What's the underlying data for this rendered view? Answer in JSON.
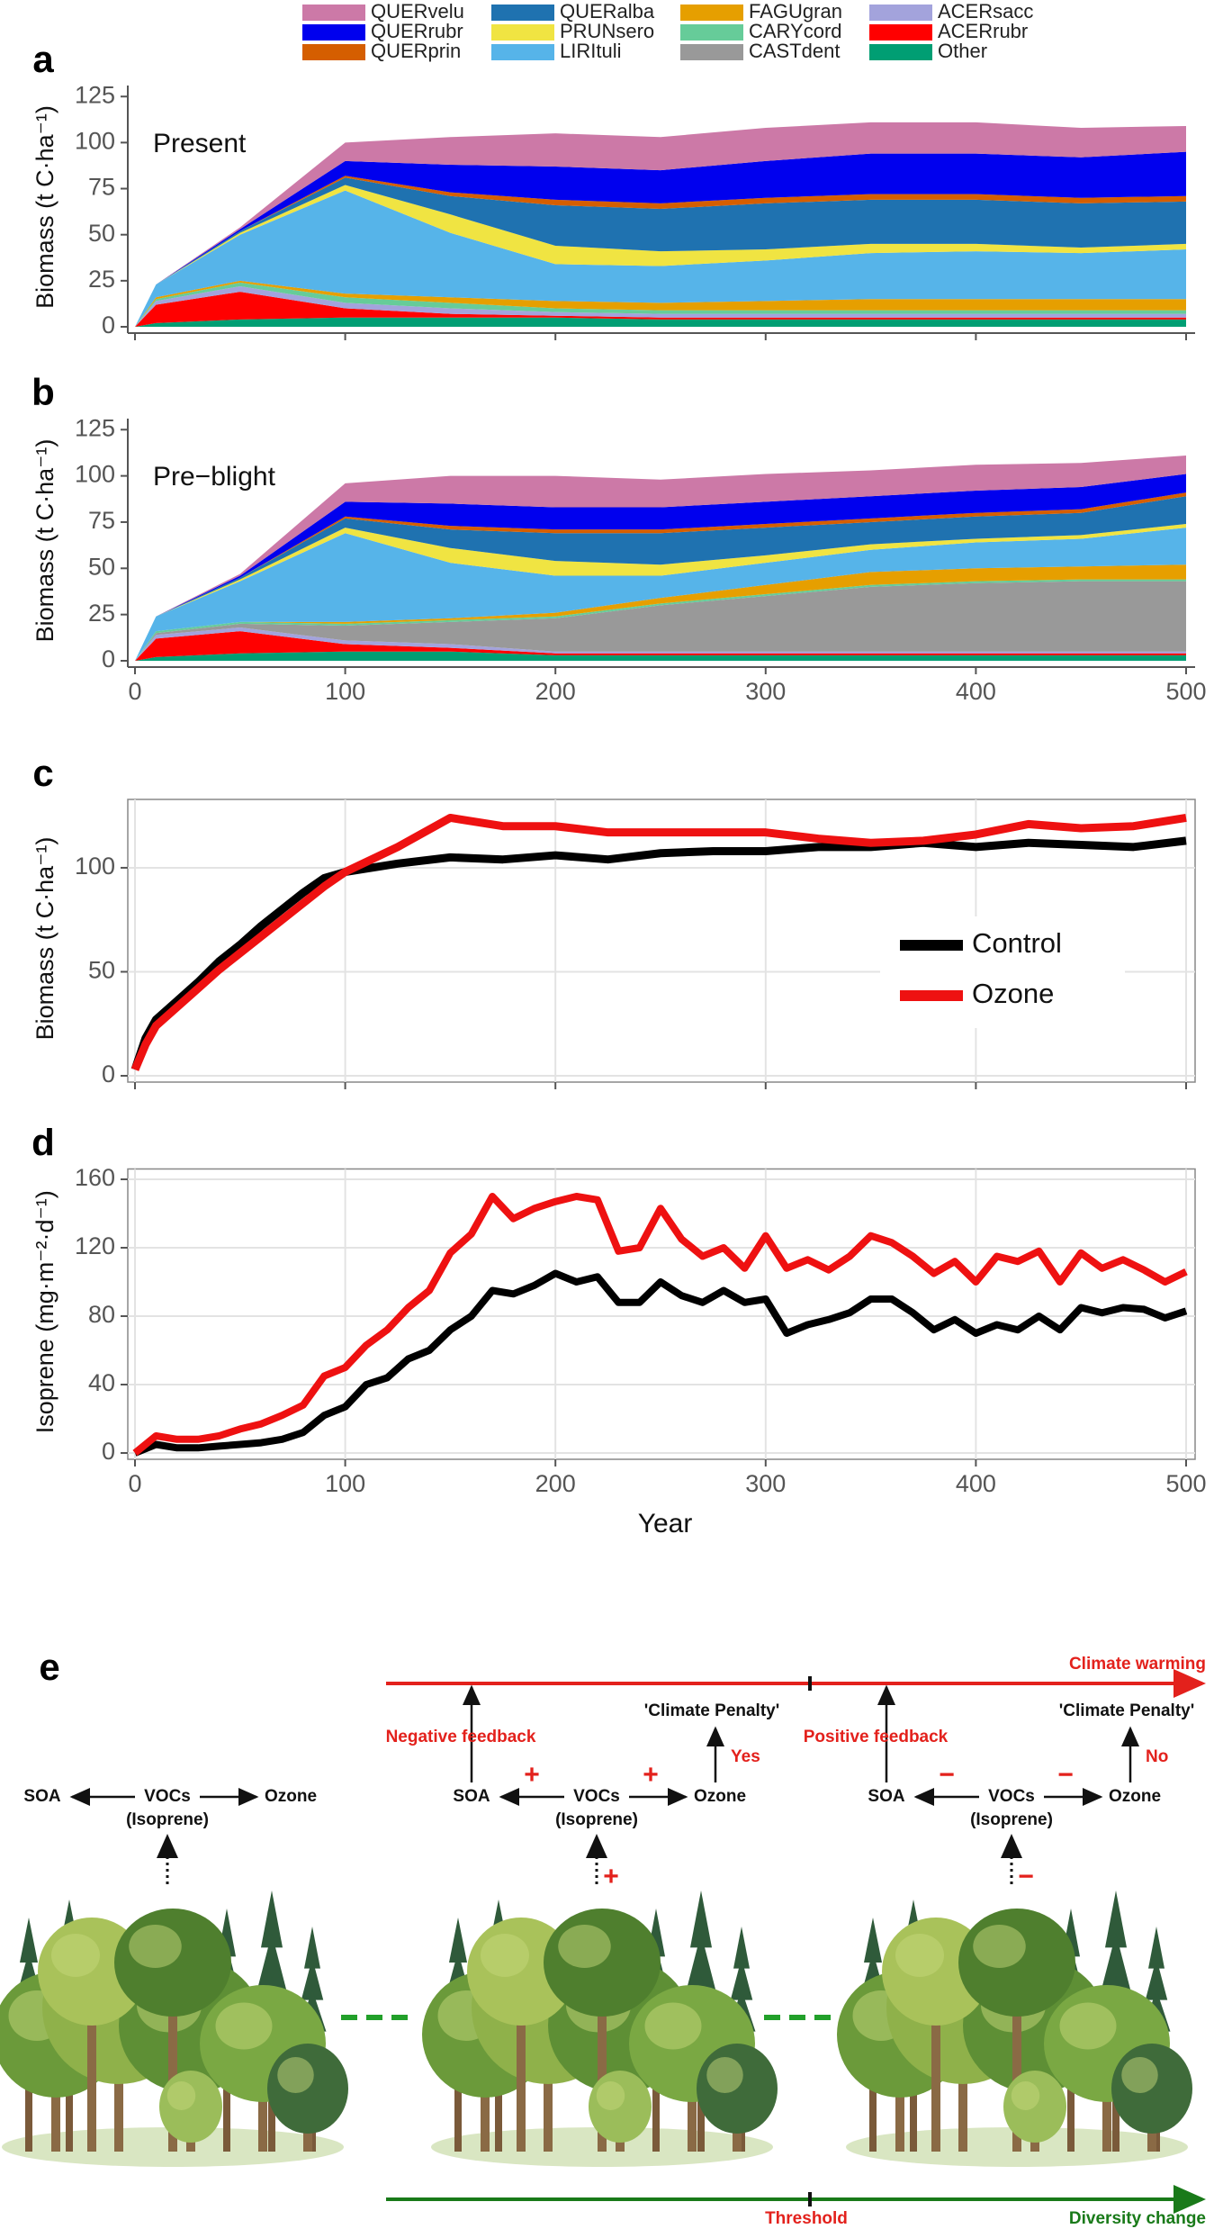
{
  "chart_data": [
    {
      "type": "area",
      "panel_label": "a",
      "annotation": "Present",
      "y_label": "Biomass (t C·ha⁻¹)",
      "stacked": true,
      "grid": false,
      "x": [
        0,
        10,
        50,
        100,
        150,
        200,
        250,
        300,
        350,
        400,
        450,
        500
      ],
      "xlim": [
        0,
        500
      ],
      "ylim": [
        0,
        130
      ],
      "yticks": [
        0,
        25,
        50,
        75,
        100,
        125
      ],
      "series": [
        {
          "name": "QUERvelu",
          "color": "#cc79a7",
          "values": [
            0,
            0,
            1,
            10,
            15,
            18,
            18,
            18,
            17,
            17,
            16,
            14
          ]
        },
        {
          "name": "QUERrubr",
          "color": "#0000ee",
          "values": [
            0,
            0,
            1,
            8,
            15,
            18,
            18,
            20,
            22,
            22,
            22,
            24
          ]
        },
        {
          "name": "QUERprin",
          "color": "#d55e00",
          "values": [
            0,
            0,
            0,
            1,
            2,
            3,
            3,
            3,
            3,
            3,
            3,
            3
          ]
        },
        {
          "name": "QUERalba",
          "color": "#1f72b0",
          "values": [
            0,
            0,
            1,
            4,
            10,
            22,
            23,
            25,
            24,
            24,
            24,
            23
          ]
        },
        {
          "name": "PRUNsero",
          "color": "#f0e442",
          "values": [
            0,
            0,
            1,
            3,
            10,
            10,
            8,
            6,
            5,
            4,
            3,
            3
          ]
        },
        {
          "name": "LIRItuli",
          "color": "#56b4e9",
          "values": [
            0,
            7,
            25,
            56,
            35,
            20,
            20,
            22,
            25,
            26,
            25,
            27
          ]
        },
        {
          "name": "FAGUgran",
          "color": "#e69f00",
          "values": [
            0,
            1,
            1,
            2,
            3,
            4,
            4,
            5,
            6,
            6,
            6,
            6
          ]
        },
        {
          "name": "CARYcord",
          "color": "#66cc99",
          "values": [
            0,
            1,
            2,
            3,
            3,
            2,
            2,
            2,
            2,
            2,
            2,
            2
          ]
        },
        {
          "name": "CASTdent",
          "color": "#999999",
          "values": [
            0,
            0,
            0,
            0,
            0,
            0,
            0,
            0,
            0,
            0,
            0,
            0
          ]
        },
        {
          "name": "ACERsacc",
          "color": "#a3a3dc",
          "values": [
            0,
            2,
            3,
            3,
            3,
            2,
            2,
            2,
            2,
            2,
            2,
            2
          ]
        },
        {
          "name": "ACERrubr",
          "color": "#ff0000",
          "values": [
            0,
            10,
            15,
            5,
            2,
            1,
            1,
            1,
            1,
            1,
            1,
            1
          ]
        },
        {
          "name": "Other",
          "color": "#009e73",
          "values": [
            0,
            2,
            4,
            5,
            5,
            5,
            4,
            4,
            4,
            4,
            4,
            4
          ]
        }
      ]
    },
    {
      "type": "area",
      "panel_label": "b",
      "annotation": "Pre−blight",
      "y_label": "Biomass (t C·ha⁻¹)",
      "stacked": true,
      "grid": false,
      "x": [
        0,
        10,
        50,
        100,
        150,
        200,
        250,
        300,
        350,
        400,
        450,
        500
      ],
      "xlim": [
        0,
        500
      ],
      "ylim": [
        0,
        130
      ],
      "yticks": [
        0,
        25,
        50,
        75,
        100,
        125
      ],
      "xticks": [
        0,
        100,
        200,
        300,
        400,
        500
      ],
      "series": [
        {
          "name": "QUERvelu",
          "color": "#cc79a7",
          "values": [
            0,
            0,
            1,
            10,
            15,
            17,
            15,
            15,
            14,
            14,
            13,
            10
          ]
        },
        {
          "name": "QUERrubr",
          "color": "#0000ee",
          "values": [
            0,
            0,
            1,
            8,
            12,
            12,
            12,
            12,
            12,
            12,
            12,
            10
          ]
        },
        {
          "name": "QUERprin",
          "color": "#d55e00",
          "values": [
            0,
            0,
            0,
            1,
            2,
            2,
            2,
            2,
            2,
            2,
            2,
            2
          ]
        },
        {
          "name": "QUERalba",
          "color": "#1f72b0",
          "values": [
            0,
            0,
            1,
            5,
            10,
            15,
            17,
            15,
            12,
            12,
            12,
            15
          ]
        },
        {
          "name": "PRUNsero",
          "color": "#f0e442",
          "values": [
            0,
            0,
            1,
            3,
            8,
            8,
            6,
            4,
            3,
            2,
            2,
            2
          ]
        },
        {
          "name": "LIRItuli",
          "color": "#56b4e9",
          "values": [
            0,
            8,
            22,
            48,
            30,
            20,
            12,
            12,
            12,
            14,
            15,
            20
          ]
        },
        {
          "name": "FAGUgran",
          "color": "#e69f00",
          "values": [
            0,
            0,
            0,
            1,
            1,
            2,
            3,
            5,
            7,
            7,
            7,
            8
          ]
        },
        {
          "name": "CARYcord",
          "color": "#66cc99",
          "values": [
            0,
            1,
            1,
            1,
            1,
            1,
            1,
            1,
            1,
            1,
            1,
            1
          ]
        },
        {
          "name": "CASTdent",
          "color": "#999999",
          "values": [
            0,
            1,
            2,
            8,
            12,
            18,
            25,
            30,
            35,
            37,
            38,
            38
          ]
        },
        {
          "name": "ACERsacc",
          "color": "#a3a3dc",
          "values": [
            0,
            2,
            2,
            2,
            2,
            1,
            1,
            1,
            1,
            1,
            1,
            1
          ]
        },
        {
          "name": "ACERrubr",
          "color": "#ff0000",
          "values": [
            0,
            10,
            12,
            4,
            2,
            1,
            1,
            1,
            1,
            1,
            1,
            1
          ]
        },
        {
          "name": "Other",
          "color": "#009e73",
          "values": [
            0,
            2,
            4,
            5,
            5,
            3,
            3,
            3,
            3,
            3,
            3,
            3
          ]
        }
      ]
    },
    {
      "type": "line",
      "panel_label": "c",
      "y_label": "Biomass (t C·ha⁻¹)",
      "grid": true,
      "legend": "center right",
      "x": [
        0,
        5,
        10,
        20,
        30,
        40,
        50,
        60,
        70,
        80,
        90,
        100,
        125,
        150,
        175,
        200,
        225,
        250,
        275,
        300,
        325,
        350,
        375,
        400,
        425,
        450,
        475,
        500
      ],
      "xlim": [
        0,
        500
      ],
      "ylim": [
        0,
        132
      ],
      "yticks": [
        0,
        50,
        100
      ],
      "series": [
        {
          "name": "Control",
          "color": "#000000",
          "values": [
            3,
            18,
            27,
            36,
            45,
            55,
            63,
            72,
            80,
            88,
            95,
            98,
            102,
            105,
            104,
            106,
            104,
            107,
            108,
            108,
            110,
            110,
            112,
            110,
            112,
            111,
            110,
            113
          ]
        },
        {
          "name": "Ozone",
          "color": "#ee1111",
          "values": [
            3,
            15,
            24,
            33,
            42,
            51,
            59,
            67,
            75,
            83,
            91,
            98,
            110,
            124,
            120,
            120,
            117,
            117,
            117,
            117,
            114,
            112,
            113,
            116,
            121,
            119,
            120,
            124
          ]
        }
      ]
    },
    {
      "type": "line",
      "panel_label": "d",
      "y_label": "Isoprene (mg·m⁻²·d⁻¹)",
      "x_label": "Year",
      "grid": true,
      "x": [
        0,
        10,
        20,
        30,
        40,
        50,
        60,
        70,
        80,
        90,
        100,
        110,
        120,
        130,
        140,
        150,
        160,
        170,
        180,
        190,
        200,
        210,
        220,
        230,
        240,
        250,
        260,
        270,
        280,
        290,
        300,
        310,
        320,
        330,
        340,
        350,
        360,
        370,
        380,
        390,
        400,
        410,
        420,
        430,
        440,
        450,
        460,
        470,
        480,
        490,
        500
      ],
      "xlim": [
        0,
        500
      ],
      "ylim": [
        0,
        165
      ],
      "yticks": [
        0,
        40,
        80,
        120,
        160
      ],
      "xticks": [
        0,
        100,
        200,
        300,
        400,
        500
      ],
      "series": [
        {
          "name": "Control",
          "color": "#000000",
          "values": [
            0,
            5,
            3,
            3,
            4,
            5,
            6,
            8,
            12,
            22,
            27,
            40,
            44,
            55,
            60,
            72,
            80,
            95,
            93,
            98,
            105,
            100,
            103,
            88,
            88,
            100,
            92,
            88,
            95,
            88,
            90,
            70,
            75,
            78,
            82,
            90,
            90,
            82,
            72,
            78,
            70,
            75,
            72,
            80,
            72,
            85,
            82,
            85,
            84,
            79,
            83
          ]
        },
        {
          "name": "Ozone",
          "color": "#ee1111",
          "values": [
            0,
            10,
            8,
            8,
            10,
            14,
            17,
            22,
            28,
            45,
            50,
            63,
            72,
            85,
            95,
            117,
            128,
            150,
            137,
            143,
            147,
            150,
            148,
            118,
            120,
            143,
            125,
            115,
            120,
            108,
            127,
            108,
            113,
            107,
            115,
            127,
            123,
            115,
            105,
            112,
            100,
            115,
            112,
            118,
            100,
            117,
            108,
            113,
            107,
            100,
            106
          ]
        }
      ]
    }
  ],
  "diagram": {
    "panel_label": "e",
    "climate_warming": "Climate warming",
    "diversity_change": "Diversity change",
    "threshold": "Threshold",
    "groups": [
      {
        "soa": "SOA",
        "vocs": "VOCs",
        "isoprene": "(Isoprene)",
        "ozone": "Ozone"
      },
      {
        "soa": "SOA",
        "vocs": "VOCs",
        "isoprene": "(Isoprene)",
        "ozone": "Ozone",
        "feedback": "Negative feedback",
        "penalty": "'Climate Penalty'",
        "answer": "Yes",
        "sign_left": "+",
        "sign_right": "+",
        "sign_emission": "+"
      },
      {
        "soa": "SOA",
        "vocs": "VOCs",
        "isoprene": "(Isoprene)",
        "ozone": "Ozone",
        "feedback": "Positive feedback",
        "penalty": "'Climate Penalty'",
        "answer": "No",
        "sign_left": "−",
        "sign_right": "−",
        "sign_emission": "−"
      }
    ]
  }
}
